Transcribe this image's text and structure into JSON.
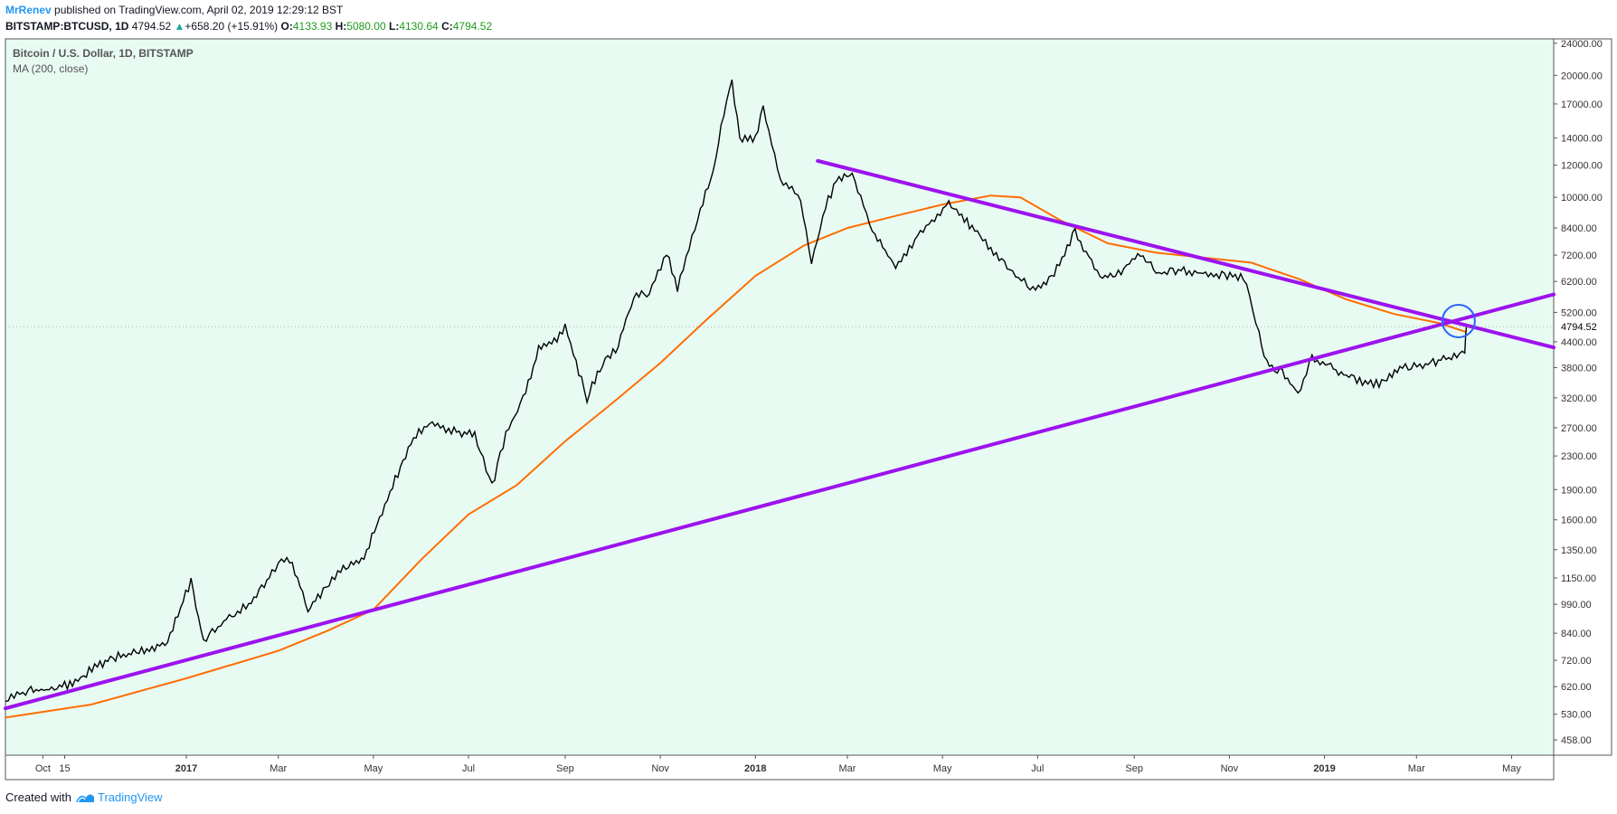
{
  "header": {
    "author": "MrRenev",
    "published_text": " published on TradingView.com, April 02, 2019 12:29:12 BST",
    "symbol": "BITSTAMP:BTCUSD, 1D",
    "last": "4794.52",
    "change_arrow": "▲",
    "change": "+658.20 (+15.91%)",
    "o_label": "O:",
    "o_value": "4133.93",
    "h_label": "H:",
    "h_value": "5080.00",
    "l_label": "L:",
    "l_value": "4130.64",
    "c_label": "C:",
    "c_value": "4794.52"
  },
  "legend": {
    "series_title": "Bitcoin / U.S. Dollar, 1D, BITSTAMP",
    "indicator": "MA (200, close)"
  },
  "footer": {
    "created_with": "Created with",
    "brand": "TradingView"
  },
  "colors": {
    "plot_bg": "#e8fbf2",
    "price": "#000000",
    "ma": "#ff6d00",
    "trendline": "#9c13ee",
    "circle": "#2962ff"
  },
  "chart_data": {
    "type": "line",
    "y_scale": "log",
    "ylim": [
      420,
      24600
    ],
    "xlim": [
      "2016-09-07",
      "2019-05-28"
    ],
    "y_ticks": [
      24000,
      20000,
      17000,
      14000,
      12000,
      10000,
      8400,
      7200,
      6200,
      5200,
      4400,
      3800,
      3200,
      2700,
      2300,
      1900,
      1600,
      1350,
      1150,
      990,
      840,
      720,
      620,
      530,
      458
    ],
    "y_tick_labels": [
      "24000.00",
      "20000.00",
      "17000.00",
      "14000.00",
      "12000.00",
      "10000.00",
      "8400.00",
      "7200.00",
      "6200.00",
      "5200.00",
      "4400.00",
      "3800.00",
      "3200.00",
      "2700.00",
      "2300.00",
      "1900.00",
      "1600.00",
      "1350.00",
      "1150.00",
      "990.00",
      "840.00",
      "720.00",
      "620.00",
      "530.00",
      "458.00"
    ],
    "x_ticks": [
      {
        "date": "2016-10-01",
        "label": "Oct"
      },
      {
        "date": "2016-10-15",
        "label": "15"
      },
      {
        "date": "2017-01-01",
        "label": "2017",
        "bold": true
      },
      {
        "date": "2017-03-01",
        "label": "Mar"
      },
      {
        "date": "2017-05-01",
        "label": "May"
      },
      {
        "date": "2017-07-01",
        "label": "Jul"
      },
      {
        "date": "2017-09-01",
        "label": "Sep"
      },
      {
        "date": "2017-11-01",
        "label": "Nov"
      },
      {
        "date": "2018-01-01",
        "label": "2018",
        "bold": true
      },
      {
        "date": "2018-03-01",
        "label": "Mar"
      },
      {
        "date": "2018-05-01",
        "label": "May"
      },
      {
        "date": "2018-07-01",
        "label": "Jul"
      },
      {
        "date": "2018-09-01",
        "label": "Sep"
      },
      {
        "date": "2018-11-01",
        "label": "Nov"
      },
      {
        "date": "2019-01-01",
        "label": "2019",
        "bold": true
      },
      {
        "date": "2019-03-01",
        "label": "Mar"
      },
      {
        "date": "2019-05-01",
        "label": "May"
      }
    ],
    "last_price_label": "4794.52",
    "last_price": 4794.52,
    "series": [
      {
        "name": "BTCUSD",
        "points": [
          [
            "2016-09-07",
            570
          ],
          [
            "2016-09-20",
            605
          ],
          [
            "2016-10-05",
            610
          ],
          [
            "2016-10-20",
            630
          ],
          [
            "2016-11-05",
            700
          ],
          [
            "2016-11-20",
            740
          ],
          [
            "2016-12-05",
            760
          ],
          [
            "2016-12-20",
            800
          ],
          [
            "2017-01-04",
            1130
          ],
          [
            "2017-01-12",
            800
          ],
          [
            "2017-01-25",
            900
          ],
          [
            "2017-02-10",
            990
          ],
          [
            "2017-02-25",
            1180
          ],
          [
            "2017-03-03",
            1280
          ],
          [
            "2017-03-10",
            1250
          ],
          [
            "2017-03-20",
            960
          ],
          [
            "2017-03-28",
            1050
          ],
          [
            "2017-04-10",
            1200
          ],
          [
            "2017-04-25",
            1300
          ],
          [
            "2017-05-10",
            1800
          ],
          [
            "2017-05-25",
            2500
          ],
          [
            "2017-06-06",
            2800
          ],
          [
            "2017-06-20",
            2650
          ],
          [
            "2017-07-05",
            2600
          ],
          [
            "2017-07-16",
            1930
          ],
          [
            "2017-07-25",
            2600
          ],
          [
            "2017-08-05",
            3200
          ],
          [
            "2017-08-15",
            4200
          ],
          [
            "2017-08-25",
            4400
          ],
          [
            "2017-09-01",
            4800
          ],
          [
            "2017-09-15",
            3200
          ],
          [
            "2017-09-25",
            3900
          ],
          [
            "2017-10-05",
            4300
          ],
          [
            "2017-10-15",
            5700
          ],
          [
            "2017-10-25",
            5800
          ],
          [
            "2017-11-05",
            7300
          ],
          [
            "2017-11-12",
            6000
          ],
          [
            "2017-11-25",
            9000
          ],
          [
            "2017-12-05",
            11500
          ],
          [
            "2017-12-10",
            15000
          ],
          [
            "2017-12-17",
            19300
          ],
          [
            "2017-12-22",
            14000
          ],
          [
            "2018-01-01",
            14000
          ],
          [
            "2018-01-06",
            16500
          ],
          [
            "2018-01-17",
            11000
          ],
          [
            "2018-01-30",
            10000
          ],
          [
            "2018-02-06",
            6900
          ],
          [
            "2018-02-15",
            9500
          ],
          [
            "2018-02-22",
            11000
          ],
          [
            "2018-03-04",
            11500
          ],
          [
            "2018-03-17",
            8300
          ],
          [
            "2018-04-01",
            6700
          ],
          [
            "2018-04-15",
            8000
          ],
          [
            "2018-05-05",
            9700
          ],
          [
            "2018-05-20",
            8400
          ],
          [
            "2018-06-01",
            7500
          ],
          [
            "2018-06-15",
            6500
          ],
          [
            "2018-06-28",
            5900
          ],
          [
            "2018-07-10",
            6300
          ],
          [
            "2018-07-25",
            8200
          ],
          [
            "2018-08-10",
            6400
          ],
          [
            "2018-08-20",
            6400
          ],
          [
            "2018-09-05",
            7300
          ],
          [
            "2018-09-15",
            6500
          ],
          [
            "2018-10-01",
            6600
          ],
          [
            "2018-10-15",
            6500
          ],
          [
            "2018-11-10",
            6350
          ],
          [
            "2018-11-14",
            5600
          ],
          [
            "2018-11-20",
            4600
          ],
          [
            "2018-11-25",
            3900
          ],
          [
            "2018-12-05",
            3700
          ],
          [
            "2018-12-15",
            3250
          ],
          [
            "2018-12-24",
            4000
          ],
          [
            "2019-01-05",
            3800
          ],
          [
            "2019-01-20",
            3550
          ],
          [
            "2019-02-05",
            3450
          ],
          [
            "2019-02-20",
            3800
          ],
          [
            "2019-03-05",
            3850
          ],
          [
            "2019-03-20",
            4000
          ],
          [
            "2019-04-01",
            4133.93
          ],
          [
            "2019-04-02",
            4794.52
          ]
        ]
      },
      {
        "name": "MA (200, close)",
        "points": [
          [
            "2016-09-07",
            520
          ],
          [
            "2016-11-01",
            560
          ],
          [
            "2017-01-01",
            650
          ],
          [
            "2017-03-01",
            760
          ],
          [
            "2017-04-01",
            850
          ],
          [
            "2017-05-01",
            960
          ],
          [
            "2017-06-01",
            1280
          ],
          [
            "2017-07-01",
            1650
          ],
          [
            "2017-08-01",
            1950
          ],
          [
            "2017-09-01",
            2500
          ],
          [
            "2017-10-01",
            3100
          ],
          [
            "2017-11-01",
            3900
          ],
          [
            "2017-12-01",
            5000
          ],
          [
            "2018-01-01",
            6400
          ],
          [
            "2018-02-01",
            7600
          ],
          [
            "2018-03-01",
            8400
          ],
          [
            "2018-04-01",
            9000
          ],
          [
            "2018-05-01",
            9600
          ],
          [
            "2018-06-01",
            10100
          ],
          [
            "2018-06-20",
            10000
          ],
          [
            "2018-07-15",
            8800
          ],
          [
            "2018-08-15",
            7700
          ],
          [
            "2018-09-15",
            7300
          ],
          [
            "2018-10-15",
            7100
          ],
          [
            "2018-11-15",
            6900
          ],
          [
            "2018-12-15",
            6300
          ],
          [
            "2019-01-15",
            5600
          ],
          [
            "2019-02-15",
            5150
          ],
          [
            "2019-03-15",
            4900
          ],
          [
            "2019-04-02",
            4650
          ]
        ]
      }
    ],
    "trendlines": [
      {
        "from": [
          "2016-09-07",
          548
        ],
        "to": [
          "2019-05-28",
          5760
        ]
      },
      {
        "from": [
          "2018-02-10",
          12300
        ],
        "to": [
          "2019-05-28",
          4260
        ]
      }
    ],
    "annotation_circle": {
      "center": [
        "2019-03-28",
        4950
      ]
    }
  }
}
